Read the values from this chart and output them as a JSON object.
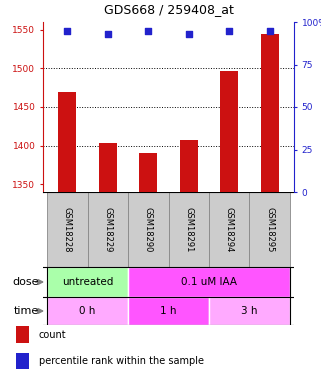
{
  "title": "GDS668 / 259408_at",
  "samples": [
    "GSM18228",
    "GSM18229",
    "GSM18290",
    "GSM18291",
    "GSM18294",
    "GSM18295"
  ],
  "bar_values": [
    1470,
    1403,
    1390,
    1407,
    1497,
    1545
  ],
  "scatter_values": [
    95,
    93,
    95,
    93,
    95,
    95
  ],
  "ylim_left": [
    1340,
    1560
  ],
  "ylim_right": [
    0,
    100
  ],
  "yticks_left": [
    1350,
    1400,
    1450,
    1500,
    1550
  ],
  "yticks_right": [
    0,
    25,
    50,
    75,
    100
  ],
  "ytick_right_labels": [
    "0",
    "25",
    "50",
    "75",
    "100%"
  ],
  "bar_color": "#cc1111",
  "scatter_color": "#2222cc",
  "bar_bottom": 1340,
  "hgrid_vals": [
    1400,
    1450,
    1500
  ],
  "dose_labels": [
    {
      "text": "untreated",
      "span": [
        0,
        2
      ],
      "color": "#aaffaa"
    },
    {
      "text": "0.1 uM IAA",
      "span": [
        2,
        6
      ],
      "color": "#ff55ff"
    }
  ],
  "time_labels": [
    {
      "text": "0 h",
      "span": [
        0,
        2
      ],
      "color": "#ffaaff"
    },
    {
      "text": "1 h",
      "span": [
        2,
        4
      ],
      "color": "#ff55ff"
    },
    {
      "text": "3 h",
      "span": [
        4,
        6
      ],
      "color": "#ffaaff"
    }
  ],
  "dose_row_label": "dose",
  "time_row_label": "time",
  "legend_items": [
    {
      "label": "count",
      "color": "#cc1111"
    },
    {
      "label": "percentile rank within the sample",
      "color": "#2222cc"
    }
  ],
  "sample_bg": "#cccccc",
  "sample_border": "#888888",
  "fig_width": 3.21,
  "fig_height": 3.75,
  "dpi": 100
}
